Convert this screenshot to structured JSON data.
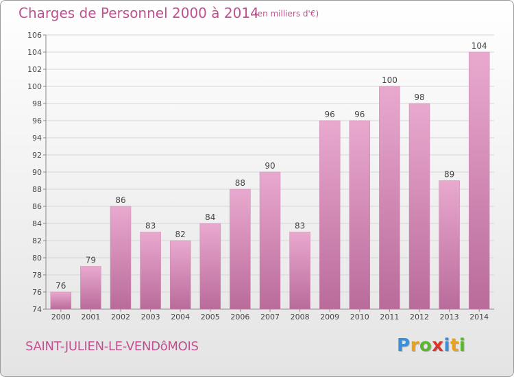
{
  "title": "Charges de Personnel 2000 à 2014",
  "subtitle": "(en milliers d'€)",
  "place": "SAINT-JULIEN-LE-VENDôMOIS",
  "brand": {
    "letters": [
      "P",
      "r",
      "o",
      "x",
      "i",
      "t",
      "i"
    ],
    "colors": [
      "#3a8fd6",
      "#e8a21c",
      "#5bb62f",
      "#d9342b",
      "#3a8fd6",
      "#e8a21c",
      "#5bb62f"
    ]
  },
  "colors": {
    "bar_light": "#e9a9cf",
    "bar_dark": "#b96b9a",
    "accent": "#c0508f"
  },
  "chart_data": {
    "type": "bar",
    "categories": [
      "2000",
      "2001",
      "2002",
      "2003",
      "2004",
      "2005",
      "2006",
      "2007",
      "2008",
      "2009",
      "2010",
      "2011",
      "2012",
      "2013",
      "2014"
    ],
    "values": [
      76,
      79,
      86,
      83,
      82,
      84,
      88,
      90,
      83,
      96,
      96,
      100,
      98,
      89,
      104
    ],
    "data_labels": [
      "76",
      "79",
      "86",
      "83",
      "82",
      "84",
      "88",
      "90",
      "83",
      "96",
      "96",
      "100",
      "98",
      "89",
      "104"
    ],
    "ylim": [
      74,
      106
    ],
    "yticks": [
      "74",
      "76",
      "78",
      "80",
      "82",
      "84",
      "86",
      "88",
      "90",
      "92",
      "94",
      "96",
      "98",
      "100",
      "102",
      "104",
      "106"
    ],
    "grid": true
  }
}
